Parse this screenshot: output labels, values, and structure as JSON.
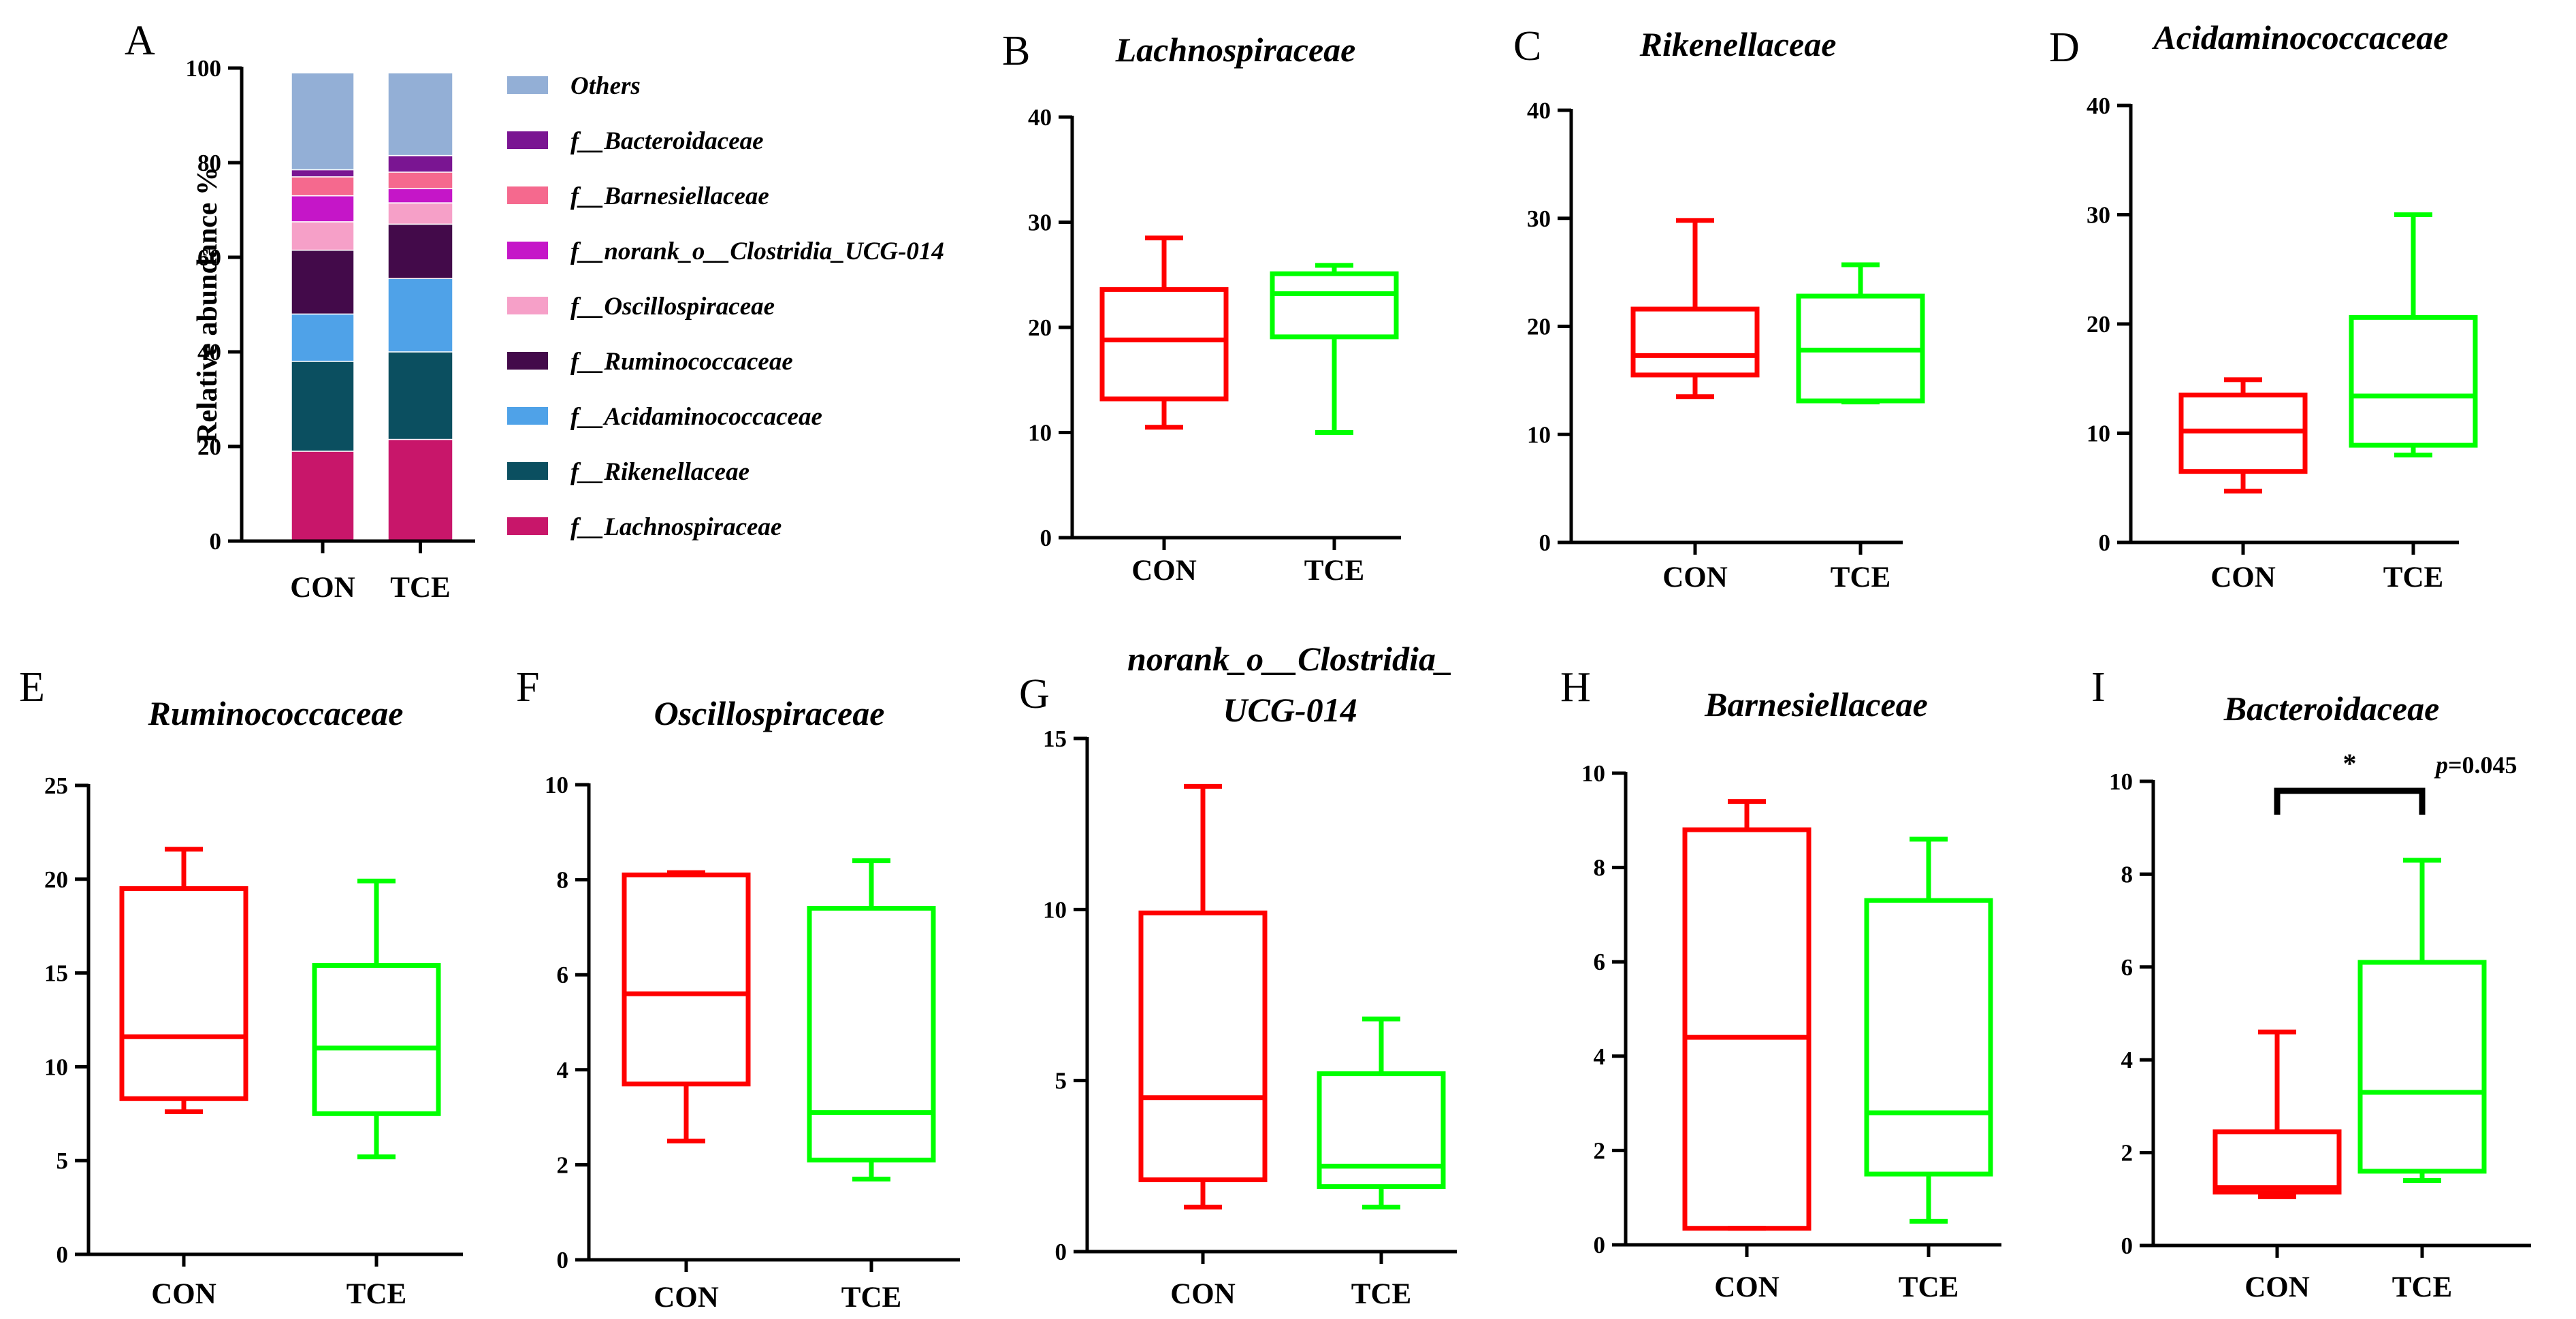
{
  "chart_data": [
    {
      "id": "A",
      "panel_label": "A",
      "type": "stacked-bar",
      "ylabel": "Relative abundance %",
      "ylim": [
        0,
        100
      ],
      "yticks": [
        "0",
        "20",
        "40",
        "60",
        "80",
        "100"
      ],
      "categories": [
        "CON",
        "TCE"
      ],
      "series": [
        {
          "name": "f__Lachnospiraceae",
          "color": "#C8166A",
          "values": [
            19,
            21.5
          ]
        },
        {
          "name": "f__Rikenellaceae",
          "color": "#0B4F60",
          "values": [
            19,
            18.5
          ]
        },
        {
          "name": "f__Acidaminococcaceae",
          "color": "#4FA2E8",
          "values": [
            10,
            15.5
          ]
        },
        {
          "name": "f__Ruminococcaceae",
          "color": "#430A4A",
          "values": [
            13.5,
            11.5
          ]
        },
        {
          "name": "f__Oscillospiraceae",
          "color": "#F6A0C8",
          "values": [
            6,
            4.5
          ]
        },
        {
          "name": "f__norank_o__Clostridia_UCG-014",
          "color": "#C516C8",
          "values": [
            5.5,
            3
          ]
        },
        {
          "name": "f__Barnesiellaceae",
          "color": "#F5698E",
          "values": [
            4,
            3.5
          ]
        },
        {
          "name": "f__Bacteroidaceae",
          "color": "#7A1592",
          "values": [
            1.5,
            3.5
          ]
        },
        {
          "name": "Others",
          "color": "#93AFD6",
          "values": [
            20.5,
            17.5
          ]
        }
      ],
      "legend_order": [
        "Others",
        "f__Bacteroidaceae",
        "f__Barnesiellaceae",
        "f__norank_o__Clostridia_UCG-014",
        "f__Oscillospiraceae",
        "f__Ruminococcaceae",
        "f__Acidaminococcaceae",
        "f__Rikenellaceae",
        "f__Lachnospiraceae"
      ]
    },
    {
      "id": "B",
      "panel_label": "B",
      "type": "box",
      "title": [
        "Lachnospiraceae"
      ],
      "ylim": [
        0,
        40
      ],
      "yticks": [
        "0",
        "10",
        "20",
        "30",
        "40"
      ],
      "categories": [
        "CON",
        "TCE"
      ],
      "colors": [
        "#FF0000",
        "#00FF00"
      ],
      "boxes": [
        {
          "min": 10.5,
          "q1": 13.2,
          "median": 18.8,
          "q3": 23.6,
          "max": 28.5
        },
        {
          "min": 10,
          "q1": 19.1,
          "median": 23.2,
          "q3": 25.1,
          "max": 25.9
        }
      ]
    },
    {
      "id": "C",
      "panel_label": "C",
      "type": "box",
      "title": [
        "Rikenellaceae"
      ],
      "ylim": [
        0,
        40
      ],
      "yticks": [
        "0",
        "10",
        "20",
        "30",
        "40"
      ],
      "categories": [
        "CON",
        "TCE"
      ],
      "colors": [
        "#FF0000",
        "#00FF00"
      ],
      "boxes": [
        {
          "min": 13.5,
          "q1": 15.5,
          "median": 17.3,
          "q3": 21.6,
          "max": 29.8
        },
        {
          "min": 13,
          "q1": 13.1,
          "median": 17.8,
          "q3": 22.8,
          "max": 25.7
        }
      ]
    },
    {
      "id": "D",
      "panel_label": "D",
      "type": "box",
      "title": [
        "Acidaminococcaceae"
      ],
      "ylim": [
        0,
        40
      ],
      "yticks": [
        "0",
        "10",
        "20",
        "30",
        "40"
      ],
      "categories": [
        "CON",
        "TCE"
      ],
      "colors": [
        "#FF0000",
        "#00FF00"
      ],
      "boxes": [
        {
          "min": 4.7,
          "q1": 6.5,
          "median": 10.2,
          "q3": 13.5,
          "max": 14.9
        },
        {
          "min": 8,
          "q1": 8.9,
          "median": 13.4,
          "q3": 20.6,
          "max": 30
        }
      ]
    },
    {
      "id": "E",
      "panel_label": "E",
      "type": "box",
      "title": [
        "Ruminococcaceae"
      ],
      "ylim": [
        0,
        25
      ],
      "yticks": [
        "0",
        "5",
        "10",
        "15",
        "20",
        "25"
      ],
      "categories": [
        "CON",
        "TCE"
      ],
      "colors": [
        "#FF0000",
        "#00FF00"
      ],
      "boxes": [
        {
          "min": 7.6,
          "q1": 8.3,
          "median": 11.6,
          "q3": 19.5,
          "max": 21.6
        },
        {
          "min": 5.2,
          "q1": 7.5,
          "median": 11,
          "q3": 15.4,
          "max": 19.9
        }
      ]
    },
    {
      "id": "F",
      "panel_label": "F",
      "type": "box",
      "title": [
        "Oscillospiraceae"
      ],
      "ylim": [
        0,
        10
      ],
      "yticks": [
        "0",
        "2",
        "4",
        "6",
        "8",
        "10"
      ],
      "categories": [
        "CON",
        "TCE"
      ],
      "colors": [
        "#FF0000",
        "#00FF00"
      ],
      "boxes": [
        {
          "min": 2.5,
          "q1": 3.7,
          "median": 5.6,
          "q3": 8.1,
          "max": 8.15
        },
        {
          "min": 1.7,
          "q1": 2.1,
          "median": 3.1,
          "q3": 7.4,
          "max": 8.4
        }
      ]
    },
    {
      "id": "G",
      "panel_label": "G",
      "type": "box",
      "title": [
        "norank_o__Clostridia_",
        "UCG-014"
      ],
      "ylim": [
        0,
        15
      ],
      "yticks": [
        "0",
        "5",
        "10",
        "15"
      ],
      "categories": [
        "CON",
        "TCE"
      ],
      "colors": [
        "#FF0000",
        "#00FF00"
      ],
      "boxes": [
        {
          "min": 1.3,
          "q1": 2.1,
          "median": 4.5,
          "q3": 9.9,
          "max": 13.6
        },
        {
          "min": 1.3,
          "q1": 1.9,
          "median": 2.5,
          "q3": 5.2,
          "max": 6.8
        }
      ]
    },
    {
      "id": "H",
      "panel_label": "H",
      "type": "box",
      "title": [
        "Barnesiellaceae"
      ],
      "ylim": [
        0,
        10
      ],
      "yticks": [
        "0",
        "2",
        "4",
        "6",
        "8",
        "10"
      ],
      "categories": [
        "CON",
        "TCE"
      ],
      "colors": [
        "#FF0000",
        "#00FF00"
      ],
      "boxes": [
        {
          "min": 0.35,
          "q1": 0.35,
          "median": 4.4,
          "q3": 8.8,
          "max": 9.4
        },
        {
          "min": 0.5,
          "q1": 1.5,
          "median": 2.8,
          "q3": 7.3,
          "max": 8.6
        }
      ]
    },
    {
      "id": "I",
      "panel_label": "I",
      "type": "box",
      "title": [
        "Bacteroidaceae"
      ],
      "ylim": [
        0,
        10
      ],
      "yticks": [
        "0",
        "2",
        "4",
        "6",
        "8",
        "10"
      ],
      "categories": [
        "CON",
        "TCE"
      ],
      "colors": [
        "#FF0000",
        "#00FF00"
      ],
      "boxes": [
        {
          "min": 1.05,
          "q1": 1.15,
          "median": 1.25,
          "q3": 2.45,
          "max": 4.6
        },
        {
          "min": 1.4,
          "q1": 1.6,
          "median": 3.3,
          "q3": 6.1,
          "max": 8.3
        }
      ],
      "significance": {
        "marker": "*",
        "p_label": "p",
        "p_value": "=0.045"
      }
    }
  ]
}
